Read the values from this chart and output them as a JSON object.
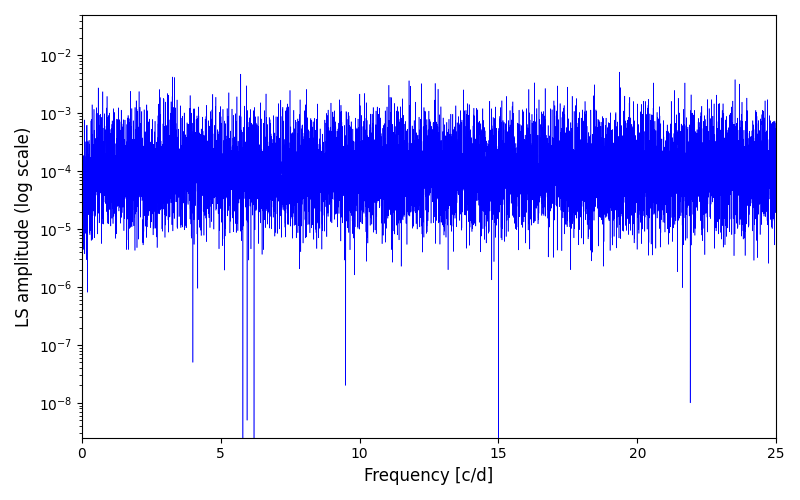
{
  "freq_min": 0,
  "freq_max": 25,
  "n_points": 10000,
  "ylim_min": 2.5e-09,
  "ylim_max": 0.05,
  "xlabel": "Frequency [c/d]",
  "ylabel": "LS amplitude (log scale)",
  "line_color": "#0000ff",
  "line_width": 0.4,
  "background_color": "#ffffff",
  "seed": 1234,
  "xticks": [
    0,
    5,
    10,
    15,
    20,
    25
  ],
  "figwidth": 8.0,
  "figheight": 5.0,
  "dpi": 100
}
